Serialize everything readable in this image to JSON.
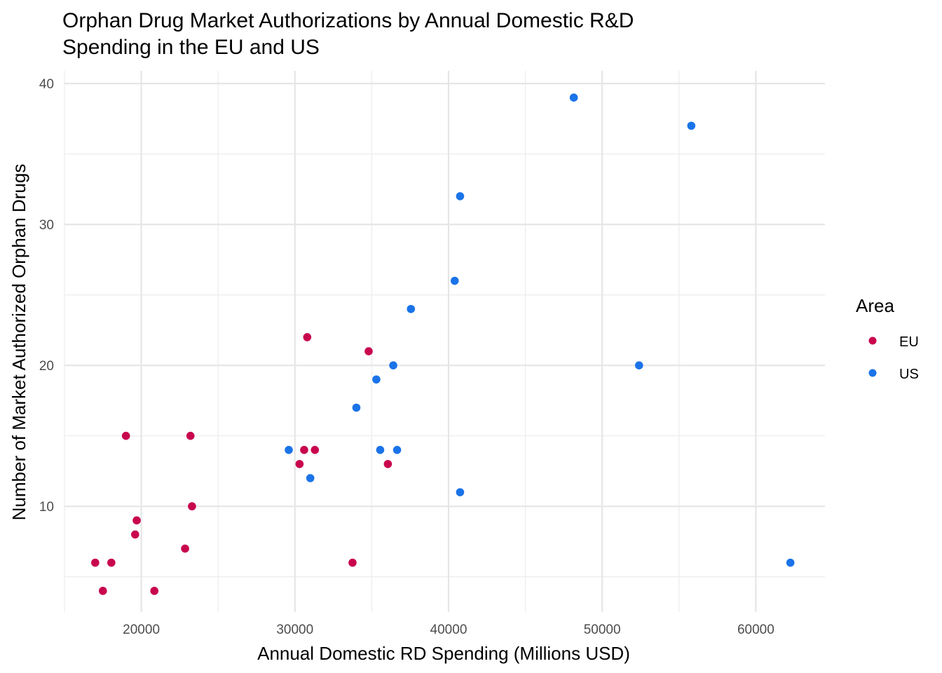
{
  "chart_data": {
    "type": "scatter",
    "title": "Orphan Drug Market Authorizations by Annual Domestic R&D Spending in the EU and US",
    "title_lines": [
      "Orphan Drug Market Authorizations by Annual Domestic R&D",
      "Spending in the EU and US"
    ],
    "xlabel": "Annual Domestic RD Spending (Millions USD)",
    "ylabel": "Number of Market Authorized Orphan Drugs",
    "xlim": [
      15000,
      64500
    ],
    "ylim": [
      2.5,
      40.9
    ],
    "x_ticks": [
      20000,
      30000,
      40000,
      50000,
      60000
    ],
    "y_ticks": [
      10,
      20,
      30,
      40
    ],
    "grid": true,
    "legend": {
      "title": "Area",
      "placement": "right"
    },
    "series": [
      {
        "name": "EU",
        "color": "#c8064e",
        "points": [
          {
            "x": 17000,
            "y": 6
          },
          {
            "x": 17500,
            "y": 4
          },
          {
            "x": 18050,
            "y": 6
          },
          {
            "x": 19000,
            "y": 15
          },
          {
            "x": 19600,
            "y": 8
          },
          {
            "x": 19700,
            "y": 9
          },
          {
            "x": 20850,
            "y": 4
          },
          {
            "x": 22850,
            "y": 7
          },
          {
            "x": 23200,
            "y": 15
          },
          {
            "x": 23300,
            "y": 10
          },
          {
            "x": 30300,
            "y": 13
          },
          {
            "x": 30600,
            "y": 14
          },
          {
            "x": 30800,
            "y": 22
          },
          {
            "x": 31300,
            "y": 14
          },
          {
            "x": 33750,
            "y": 6
          },
          {
            "x": 34800,
            "y": 21
          },
          {
            "x": 36050,
            "y": 13
          }
        ]
      },
      {
        "name": "US",
        "color": "#1a73e8",
        "points": [
          {
            "x": 29600,
            "y": 14
          },
          {
            "x": 31000,
            "y": 12
          },
          {
            "x": 34000,
            "y": 17
          },
          {
            "x": 35300,
            "y": 19
          },
          {
            "x": 35550,
            "y": 14
          },
          {
            "x": 36400,
            "y": 20
          },
          {
            "x": 36650,
            "y": 14
          },
          {
            "x": 37550,
            "y": 24
          },
          {
            "x": 40400,
            "y": 26
          },
          {
            "x": 40750,
            "y": 11
          },
          {
            "x": 40750,
            "y": 32
          },
          {
            "x": 48150,
            "y": 39
          },
          {
            "x": 52400,
            "y": 20
          },
          {
            "x": 55800,
            "y": 37
          },
          {
            "x": 62250,
            "y": 6
          }
        ]
      }
    ]
  }
}
